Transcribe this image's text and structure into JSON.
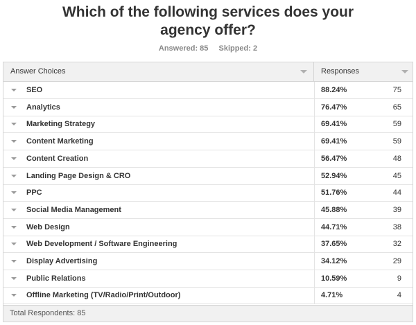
{
  "title_line1": "Which of the following services does your",
  "title_line2": "agency offer?",
  "answered": "Answered: 85",
  "skipped": "Skipped: 2",
  "header": {
    "choices": "Answer Choices",
    "responses": "Responses"
  },
  "rows": [
    {
      "label": "SEO",
      "pct": "88.24%",
      "count": "75"
    },
    {
      "label": "Analytics",
      "pct": "76.47%",
      "count": "65"
    },
    {
      "label": "Marketing Strategy",
      "pct": "69.41%",
      "count": "59"
    },
    {
      "label": "Content Marketing",
      "pct": "69.41%",
      "count": "59"
    },
    {
      "label": "Content Creation",
      "pct": "56.47%",
      "count": "48"
    },
    {
      "label": "Landing Page Design & CRO",
      "pct": "52.94%",
      "count": "45"
    },
    {
      "label": "PPC",
      "pct": "51.76%",
      "count": "44"
    },
    {
      "label": "Social Media Management",
      "pct": "45.88%",
      "count": "39"
    },
    {
      "label": "Web Design",
      "pct": "44.71%",
      "count": "38"
    },
    {
      "label": "Web Development / Software Engineering",
      "pct": "37.65%",
      "count": "32"
    },
    {
      "label": "Display Advertising",
      "pct": "34.12%",
      "count": "29"
    },
    {
      "label": "Public Relations",
      "pct": "10.59%",
      "count": "9"
    },
    {
      "label": "Offline Marketing (TV/Radio/Print/Outdoor)",
      "pct": "4.71%",
      "count": "4"
    }
  ],
  "footer": "Total Respondents: 85",
  "colors": {
    "header_bg": "#f1f1f1",
    "border": "#d4d4d4",
    "text": "#333333",
    "meta": "#888888"
  }
}
